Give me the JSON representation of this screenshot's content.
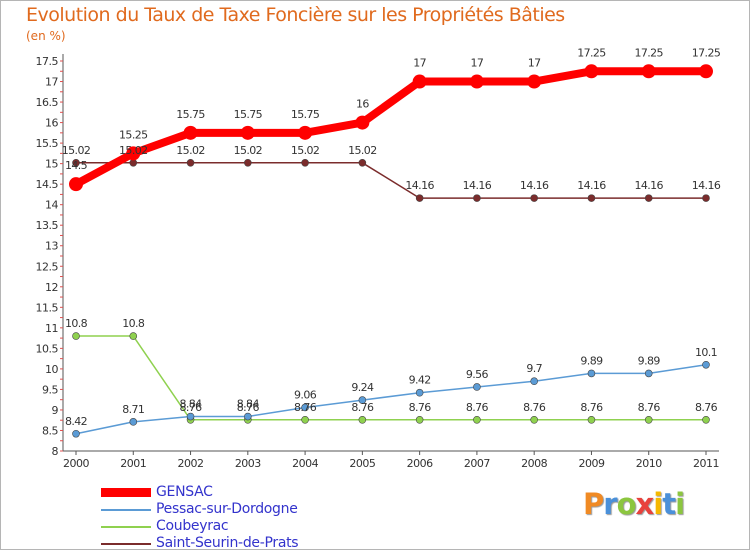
{
  "title": "Evolution du Taux de Taxe Foncière sur les Propriétés Bâties",
  "subtitle": "(en %)",
  "logo": {
    "letters": [
      "P",
      "r",
      "o",
      "x",
      "i",
      "t",
      "i"
    ],
    "colors": [
      "#f08a24",
      "#4a90d9",
      "#8cc63f",
      "#e8413c",
      "#f5b800",
      "#4a90d9",
      "#8cc63f"
    ]
  },
  "chart_data": {
    "type": "line",
    "title": "Evolution du Taux de Taxe Foncière sur les Propriétés Bâties",
    "ylabel": "(en %)",
    "xlabel": "",
    "ylim": [
      8,
      17.5
    ],
    "yticks": [
      "8",
      "8.5",
      "9",
      "9.5",
      "10",
      "10.5",
      "11",
      "11.5",
      "12",
      "12.5",
      "13",
      "13.5",
      "14",
      "14.5",
      "15",
      "15.5",
      "16",
      "16.5",
      "17",
      "17.5"
    ],
    "x": [
      "2000",
      "2001",
      "2002",
      "2003",
      "2004",
      "2005",
      "2006",
      "2007",
      "2008",
      "2009",
      "2010",
      "2011"
    ],
    "series": [
      {
        "name": "GENSAC",
        "color": "#ff0000",
        "values": [
          14.5,
          15.25,
          15.75,
          15.75,
          15.75,
          16,
          17,
          17,
          17,
          17.25,
          17.25,
          17.25
        ],
        "labels": [
          "14.5",
          "15.25",
          "15.75",
          "15.75",
          "15.75",
          "16",
          "17",
          "17",
          "17",
          "17.25",
          "17.25",
          "17.25"
        ]
      },
      {
        "name": "Pessac-sur-Dordogne",
        "color": "#5b9bd5",
        "values": [
          8.42,
          8.71,
          8.84,
          8.84,
          9.06,
          9.24,
          9.42,
          9.56,
          9.7,
          9.89,
          9.89,
          10.1
        ],
        "labels": [
          "8.42",
          "8.71",
          "8.84",
          "8.84",
          "9.06",
          "9.24",
          "9.42",
          "9.56",
          "9.7",
          "9.89",
          "9.89",
          "10.1"
        ]
      },
      {
        "name": "Coubeyrac",
        "color": "#8fd14f",
        "values": [
          10.8,
          10.8,
          8.76,
          8.76,
          8.76,
          8.76,
          8.76,
          8.76,
          8.76,
          8.76,
          8.76,
          8.76
        ],
        "labels": [
          "10.8",
          "10.8",
          "8.76",
          "8.76",
          "8.76",
          "8.76",
          "8.76",
          "8.76",
          "8.76",
          "8.76",
          "8.76",
          "8.76"
        ]
      },
      {
        "name": "Saint-Seurin-de-Prats",
        "color": "#7b2c2c",
        "values": [
          15.02,
          15.02,
          15.02,
          15.02,
          15.02,
          15.02,
          14.16,
          14.16,
          14.16,
          14.16,
          14.16,
          14.16
        ],
        "labels": [
          "15.02",
          "15.02",
          "15.02",
          "15.02",
          "15.02",
          "15.02",
          "14.16",
          "14.16",
          "14.16",
          "14.16",
          "14.16",
          "14.16"
        ]
      }
    ],
    "legend_position": "bottom-left",
    "grid": false
  }
}
